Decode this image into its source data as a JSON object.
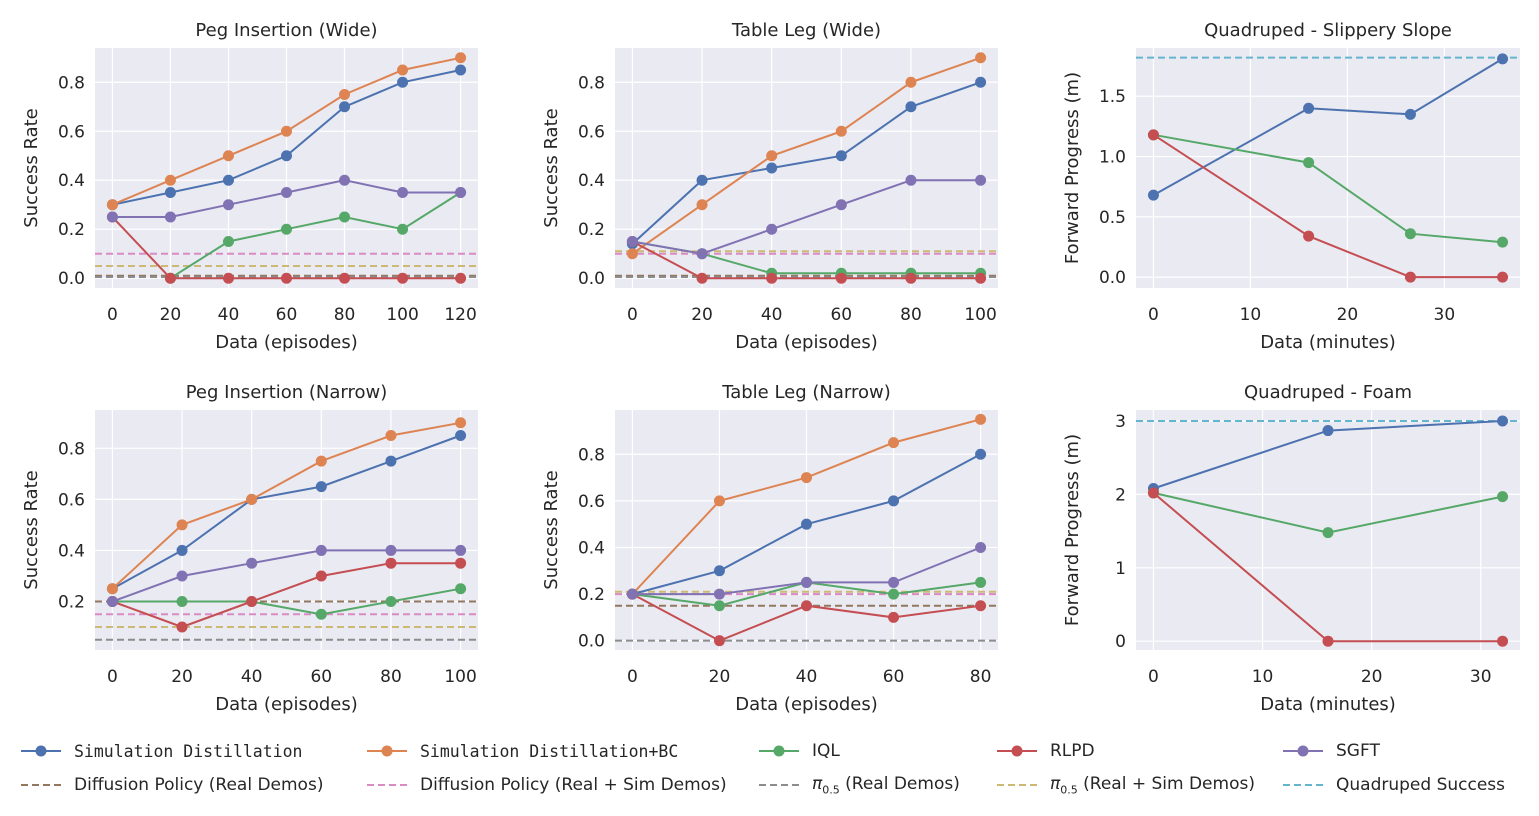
{
  "colors": {
    "plot_bg": "#eaeaf2",
    "grid": "#ffffff",
    "sim_distill": "#4c72b0",
    "sim_distill_bc": "#dd8452",
    "iql": "#55a868",
    "rlpd": "#c44e52",
    "sgft": "#8172b3",
    "dp_real": "#937860",
    "dp_real_sim": "#da8bc3",
    "pi_real": "#8c8c8c",
    "pi_real_sim": "#ccb974",
    "quad_success": "#64b5cd"
  },
  "legend": {
    "sim_distill": "Simulation Distillation",
    "sim_distill_bc": "Simulation Distillation+BC",
    "iql": "IQL",
    "rlpd": "RLPD",
    "sgft": "SGFT",
    "dp_real": "Diffusion Policy (Real Demos)",
    "dp_real_sim": "Diffusion Policy (Real + Sim Demos)",
    "pi_prefix": "π",
    "pi_sub": "0.5",
    "pi_real_suffix": " (Real Demos)",
    "pi_real_sim_suffix": " (Real + Sim Demos)",
    "quad_success": "Quadruped Success"
  },
  "chart_data": [
    {
      "type": "line",
      "title": "Peg Insertion (Wide)",
      "xlabel": "Data (episodes)",
      "ylabel": "Success Rate",
      "xlim": [
        -6,
        126
      ],
      "ylim": [
        -0.04,
        0.94
      ],
      "xticks": [
        0,
        20,
        40,
        60,
        80,
        100,
        120
      ],
      "yticks": [
        0.0,
        0.2,
        0.4,
        0.6,
        0.8
      ],
      "ytick_labels": [
        "0.0",
        "0.2",
        "0.4",
        "0.6",
        "0.8"
      ],
      "x": [
        0,
        20,
        40,
        60,
        80,
        100,
        120
      ],
      "series": [
        {
          "name": "Simulation Distillation",
          "key": "sim_distill",
          "values": [
            0.3,
            0.35,
            0.4,
            0.5,
            0.7,
            0.8,
            0.85
          ]
        },
        {
          "name": "Simulation Distillation+BC",
          "key": "sim_distill_bc",
          "values": [
            0.3,
            0.4,
            0.5,
            0.6,
            0.75,
            0.85,
            0.9
          ]
        },
        {
          "name": "IQL",
          "key": "iql",
          "values": [
            null,
            0.0,
            0.15,
            0.2,
            0.25,
            0.2,
            0.35
          ]
        },
        {
          "name": "RLPD",
          "key": "rlpd",
          "values": [
            0.25,
            0.0,
            0.0,
            0.0,
            0.0,
            0.0,
            0.0
          ]
        },
        {
          "name": "SGFT",
          "key": "sgft",
          "values": [
            0.25,
            0.25,
            0.3,
            0.35,
            0.4,
            0.35,
            0.35
          ]
        }
      ],
      "baselines": [
        {
          "name": "Diffusion Policy (Real Demos)",
          "key": "dp_real",
          "value": 0.01
        },
        {
          "name": "Diffusion Policy (Real + Sim Demos)",
          "key": "dp_real_sim",
          "value": 0.1
        },
        {
          "name": "π0.5 (Real Demos)",
          "key": "pi_real",
          "value": 0.005
        },
        {
          "name": "π0.5 (Real + Sim Demos)",
          "key": "pi_real_sim",
          "value": 0.05
        }
      ]
    },
    {
      "type": "line",
      "title": "Table Leg (Wide)",
      "xlabel": "Data (episodes)",
      "ylabel": "Success Rate",
      "xlim": [
        -5,
        105
      ],
      "ylim": [
        -0.04,
        0.94
      ],
      "xticks": [
        0,
        20,
        40,
        60,
        80,
        100
      ],
      "yticks": [
        0.0,
        0.2,
        0.4,
        0.6,
        0.8
      ],
      "ytick_labels": [
        "0.0",
        "0.2",
        "0.4",
        "0.6",
        "0.8"
      ],
      "x": [
        0,
        20,
        40,
        60,
        80,
        100
      ],
      "series": [
        {
          "name": "Simulation Distillation",
          "key": "sim_distill",
          "values": [
            0.14,
            0.4,
            0.45,
            0.5,
            0.7,
            0.8
          ]
        },
        {
          "name": "Simulation Distillation+BC",
          "key": "sim_distill_bc",
          "values": [
            0.1,
            0.3,
            0.5,
            0.6,
            0.8,
            0.9
          ]
        },
        {
          "name": "IQL",
          "key": "iql",
          "values": [
            0.15,
            0.1,
            0.02,
            0.02,
            0.02,
            0.02
          ]
        },
        {
          "name": "RLPD",
          "key": "rlpd",
          "values": [
            0.15,
            0.0,
            0.0,
            0.0,
            0.0,
            0.0
          ]
        },
        {
          "name": "SGFT",
          "key": "sgft",
          "values": [
            0.15,
            0.1,
            0.2,
            0.3,
            0.4,
            0.4
          ]
        }
      ],
      "baselines": [
        {
          "name": "Diffusion Policy (Real Demos)",
          "key": "dp_real",
          "value": 0.01
        },
        {
          "name": "Diffusion Policy (Real + Sim Demos)",
          "key": "dp_real_sim",
          "value": 0.1
        },
        {
          "name": "π0.5 (Real Demos)",
          "key": "pi_real",
          "value": 0.005
        },
        {
          "name": "π0.5 (Real + Sim Demos)",
          "key": "pi_real_sim",
          "value": 0.11
        }
      ]
    },
    {
      "type": "line",
      "title": "Quadruped - Slippery Slope",
      "xlabel": "Data (minutes)",
      "ylabel": "Forward Progress (m)",
      "xlim": [
        -1.8,
        37.8
      ],
      "ylim": [
        -0.09,
        1.9
      ],
      "xticks": [
        0,
        10,
        20,
        30
      ],
      "yticks": [
        0.0,
        0.5,
        1.0,
        1.5
      ],
      "ytick_labels": [
        "0.0",
        "0.5",
        "1.0",
        "1.5"
      ],
      "series": [
        {
          "name": "Simulation Distillation",
          "key": "sim_distill",
          "x": [
            0,
            16,
            26.5,
            36
          ],
          "values": [
            0.68,
            1.4,
            1.35,
            1.81
          ]
        },
        {
          "name": "IQL",
          "key": "iql",
          "x": [
            0,
            16,
            26.5,
            36
          ],
          "values": [
            1.18,
            0.95,
            0.36,
            0.29
          ]
        },
        {
          "name": "RLPD",
          "key": "rlpd",
          "x": [
            0,
            16,
            26.5,
            36
          ],
          "values": [
            1.18,
            0.34,
            0.0,
            0.0
          ]
        }
      ],
      "baselines": [
        {
          "name": "Quadruped Success",
          "key": "quad_success",
          "value": 1.82
        }
      ]
    },
    {
      "type": "line",
      "title": "Peg Insertion (Narrow)",
      "xlabel": "Data (episodes)",
      "ylabel": "Success Rate",
      "xlim": [
        -5,
        105
      ],
      "ylim": [
        0.01,
        0.95
      ],
      "xticks": [
        0,
        20,
        40,
        60,
        80,
        100
      ],
      "yticks": [
        0.2,
        0.4,
        0.6,
        0.8
      ],
      "ytick_labels": [
        "0.2",
        "0.4",
        "0.6",
        "0.8"
      ],
      "x": [
        0,
        20,
        40,
        60,
        80,
        100
      ],
      "series": [
        {
          "name": "Simulation Distillation",
          "key": "sim_distill",
          "values": [
            0.25,
            0.4,
            0.6,
            0.65,
            0.75,
            0.85
          ]
        },
        {
          "name": "Simulation Distillation+BC",
          "key": "sim_distill_bc",
          "values": [
            0.25,
            0.5,
            0.6,
            0.75,
            0.85,
            0.9
          ]
        },
        {
          "name": "IQL",
          "key": "iql",
          "values": [
            0.2,
            0.2,
            0.2,
            0.15,
            0.2,
            0.25
          ]
        },
        {
          "name": "RLPD",
          "key": "rlpd",
          "values": [
            0.2,
            0.1,
            0.2,
            0.3,
            0.35,
            0.35
          ]
        },
        {
          "name": "SGFT",
          "key": "sgft",
          "values": [
            0.2,
            0.3,
            0.35,
            0.4,
            0.4,
            0.4
          ]
        }
      ],
      "baselines": [
        {
          "name": "Diffusion Policy (Real Demos)",
          "key": "dp_real",
          "value": 0.2
        },
        {
          "name": "Diffusion Policy (Real + Sim Demos)",
          "key": "dp_real_sim",
          "value": 0.15
        },
        {
          "name": "π0.5 (Real Demos)",
          "key": "pi_real",
          "value": 0.05
        },
        {
          "name": "π0.5 (Real + Sim Demos)",
          "key": "pi_real_sim",
          "value": 0.1
        }
      ]
    },
    {
      "type": "line",
      "title": "Table Leg (Narrow)",
      "xlabel": "Data (episodes)",
      "ylabel": "Success Rate",
      "xlim": [
        -4,
        84
      ],
      "ylim": [
        -0.04,
        0.99
      ],
      "xticks": [
        0,
        20,
        40,
        60,
        80
      ],
      "yticks": [
        0.0,
        0.2,
        0.4,
        0.6,
        0.8
      ],
      "ytick_labels": [
        "0.0",
        "0.2",
        "0.4",
        "0.6",
        "0.8"
      ],
      "x": [
        0,
        20,
        40,
        60,
        80
      ],
      "series": [
        {
          "name": "Simulation Distillation",
          "key": "sim_distill",
          "values": [
            0.2,
            0.3,
            0.5,
            0.6,
            0.8
          ]
        },
        {
          "name": "Simulation Distillation+BC",
          "key": "sim_distill_bc",
          "values": [
            0.2,
            0.6,
            0.7,
            0.85,
            0.95
          ]
        },
        {
          "name": "IQL",
          "key": "iql",
          "values": [
            0.2,
            0.15,
            0.25,
            0.2,
            0.25
          ]
        },
        {
          "name": "RLPD",
          "key": "rlpd",
          "values": [
            0.2,
            0.0,
            0.15,
            0.1,
            0.15
          ]
        },
        {
          "name": "SGFT",
          "key": "sgft",
          "values": [
            0.2,
            0.2,
            0.25,
            0.25,
            0.4
          ]
        }
      ],
      "baselines": [
        {
          "name": "Diffusion Policy (Real Demos)",
          "key": "dp_real",
          "value": 0.15
        },
        {
          "name": "Diffusion Policy (Real + Sim Demos)",
          "key": "dp_real_sim",
          "value": 0.2
        },
        {
          "name": "π0.5 (Real Demos)",
          "key": "pi_real",
          "value": 0.0
        },
        {
          "name": "π0.5 (Real + Sim Demos)",
          "key": "pi_real_sim",
          "value": 0.21
        }
      ]
    },
    {
      "type": "line",
      "title": "Quadruped - Foam",
      "xlabel": "Data (minutes)",
      "ylabel": "Forward Progress (m)",
      "xlim": [
        -1.6,
        33.6
      ],
      "ylim": [
        -0.12,
        3.15
      ],
      "xticks": [
        0,
        10,
        20,
        30
      ],
      "yticks": [
        0,
        1,
        2,
        3
      ],
      "ytick_labels": [
        "0",
        "1",
        "2",
        "3"
      ],
      "series": [
        {
          "name": "Simulation Distillation",
          "key": "sim_distill",
          "x": [
            0,
            16,
            32
          ],
          "values": [
            2.08,
            2.87,
            3.0
          ]
        },
        {
          "name": "IQL",
          "key": "iql",
          "x": [
            0,
            16,
            32
          ],
          "values": [
            2.02,
            1.48,
            1.97
          ]
        },
        {
          "name": "RLPD",
          "key": "rlpd",
          "x": [
            0,
            16,
            32
          ],
          "values": [
            2.02,
            0.0,
            0.0
          ]
        }
      ],
      "baselines": [
        {
          "name": "Quadruped Success",
          "key": "quad_success",
          "value": 3.0
        }
      ]
    }
  ]
}
